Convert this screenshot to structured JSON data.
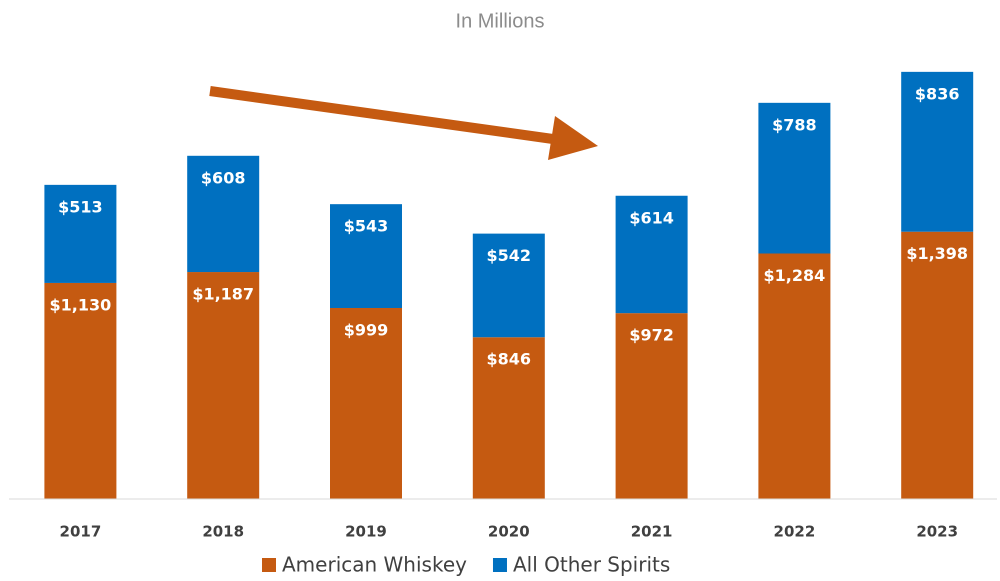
{
  "chart_data": {
    "type": "stacked_bar",
    "subtitle": "In Millions",
    "categories": [
      "2017",
      "2018",
      "2019",
      "2020",
      "2021",
      "2022",
      "2023"
    ],
    "series": [
      {
        "name": "American Whiskey",
        "color": "#c55a11",
        "values": [
          1130,
          1187,
          999,
          846,
          972,
          1284,
          1398
        ],
        "value_labels": [
          "$1,130",
          "$1,187",
          "$999",
          "$846",
          "$972",
          "$1,284",
          "$1,398"
        ]
      },
      {
        "name": "All Other Spirits",
        "color": "#0070c0",
        "values": [
          513,
          608,
          543,
          542,
          614,
          788,
          836
        ],
        "value_labels": [
          "$513",
          "$608",
          "$543",
          "$542",
          "$614",
          "$788",
          "$836"
        ]
      }
    ],
    "ylim": [
      0,
      2500
    ],
    "legend": "bottom"
  }
}
